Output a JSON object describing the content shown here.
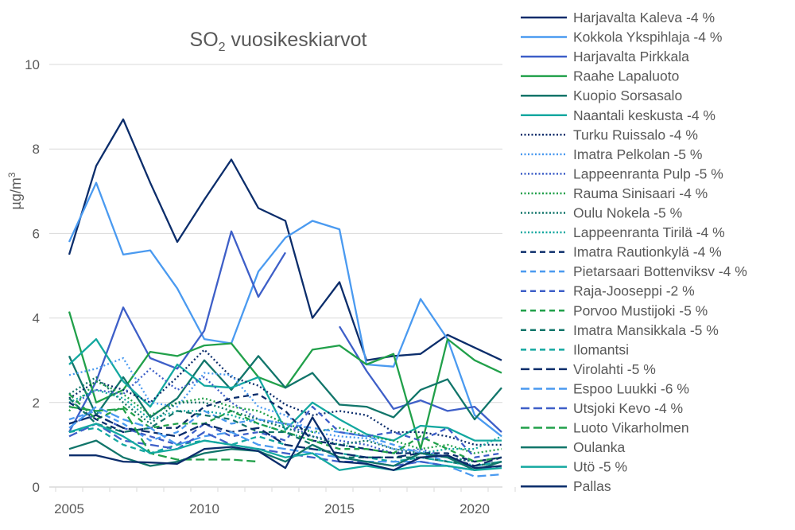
{
  "chart_data": {
    "type": "line",
    "title": "SO2 vuosikeskiarvot",
    "title_main": "SO",
    "title_sub": "2",
    "title_rest": " vuosikeskiarvot",
    "ylabel": "µg/m3",
    "ylabel_main": "µg/m",
    "ylabel_sup": "3",
    "ylim": [
      0,
      10
    ],
    "yticks": [
      0,
      2,
      4,
      6,
      8,
      10
    ],
    "xlim": [
      2005,
      2021
    ],
    "xticks": [
      2005,
      2010,
      2015,
      2020
    ],
    "grid": "horizontal",
    "legend": "right",
    "x": [
      2005,
      2006,
      2007,
      2008,
      2009,
      2010,
      2011,
      2012,
      2013,
      2014,
      2015,
      2016,
      2017,
      2018,
      2019,
      2020,
      2021
    ],
    "series": [
      {
        "name": "Harjavalta Kaleva -4 %",
        "color": "#0b2d6b",
        "style": "solid",
        "values": [
          5.5,
          7.6,
          8.7,
          7.2,
          5.8,
          6.8,
          7.75,
          6.6,
          6.3,
          4.0,
          4.85,
          3.0,
          3.1,
          3.15,
          3.6,
          3.3,
          3.0
        ]
      },
      {
        "name": "Kokkola Ykspihlaja -4 %",
        "color": "#4a9af0",
        "style": "solid",
        "values": [
          5.8,
          7.2,
          5.5,
          5.6,
          4.7,
          3.5,
          3.4,
          5.1,
          5.9,
          6.3,
          6.1,
          2.9,
          2.85,
          4.45,
          3.5,
          1.7,
          1.2
        ]
      },
      {
        "name": "Harjavalta Pirkkala",
        "color": "#3e5fc8",
        "style": "solid",
        "values": [
          1.3,
          2.5,
          4.25,
          3.05,
          2.8,
          3.7,
          6.05,
          4.5,
          5.55,
          null,
          3.8,
          2.75,
          1.85,
          2.05,
          1.8,
          1.9,
          1.3
        ]
      },
      {
        "name": "Raahe Lapaluoto",
        "color": "#21a04a",
        "style": "solid",
        "values": [
          4.15,
          2.0,
          2.3,
          3.2,
          3.1,
          3.35,
          3.4,
          2.6,
          2.35,
          3.25,
          3.35,
          2.9,
          3.15,
          0.9,
          3.5,
          3.0,
          2.7
        ]
      },
      {
        "name": "Kuopio Sorsasalo",
        "color": "#11756a",
        "style": "solid",
        "values": [
          3.1,
          1.7,
          2.6,
          1.65,
          2.1,
          3.0,
          2.3,
          3.1,
          2.35,
          2.7,
          1.95,
          1.9,
          1.65,
          2.3,
          2.55,
          1.6,
          2.35
        ]
      },
      {
        "name": "Naantali keskusta -4 %",
        "color": "#14a8a0",
        "style": "solid",
        "values": [
          2.9,
          3.5,
          2.5,
          1.9,
          2.9,
          2.4,
          2.35,
          2.6,
          1.35,
          2.0,
          1.6,
          1.25,
          1.1,
          1.45,
          1.4,
          1.1,
          1.1
        ]
      },
      {
        "name": "Turku Ruissalo -4 %",
        "color": "#0b2d6b",
        "style": "dot",
        "values": [
          2.1,
          2.5,
          2.3,
          2.0,
          2.6,
          3.25,
          2.6,
          2.4,
          1.95,
          1.7,
          1.8,
          1.7,
          1.3,
          1.3,
          1.2,
          1.0,
          1.0
        ]
      },
      {
        "name": "Imatra Pelkolan -5 %",
        "color": "#4a9af0",
        "style": "dot",
        "values": [
          2.65,
          2.8,
          3.05,
          2.0,
          1.9,
          2.7,
          2.65,
          1.9,
          1.7,
          1.3,
          1.2,
          1.15,
          0.9,
          0.85,
          0.7,
          0.5,
          0.6
        ]
      },
      {
        "name": "Lappeenranta Pulp -5 %",
        "color": "#3e5fc8",
        "style": "dot",
        "values": [
          1.9,
          2.3,
          2.2,
          2.8,
          2.3,
          2.6,
          2.0,
          1.6,
          1.5,
          1.2,
          1.1,
          1.0,
          0.8,
          0.9,
          0.7,
          0.6,
          0.7
        ]
      },
      {
        "name": "Rauma Sinisaari -4 %",
        "color": "#21a04a",
        "style": "dot",
        "values": [
          1.8,
          2.5,
          2.2,
          1.7,
          2.0,
          2.1,
          1.9,
          1.8,
          1.5,
          1.3,
          1.4,
          1.2,
          1.1,
          0.9,
          1.0,
          0.8,
          0.9
        ]
      },
      {
        "name": "Oulu Nokela -5 %",
        "color": "#11756a",
        "style": "dot",
        "values": [
          2.2,
          2.6,
          2.0,
          1.5,
          2.0,
          2.0,
          1.8,
          1.6,
          1.4,
          1.2,
          1.0,
          1.1,
          0.9,
          0.8,
          0.7,
          0.6,
          0.7
        ]
      },
      {
        "name": "Lappeenranta Tirilä -4 %",
        "color": "#14a8a0",
        "style": "dot",
        "values": [
          2.0,
          2.3,
          2.1,
          1.6,
          1.8,
          1.8,
          1.7,
          1.5,
          1.3,
          1.1,
          1.0,
          0.9,
          0.8,
          0.8,
          0.9,
          0.9,
          1.2
        ]
      },
      {
        "name": "Imatra Rautionkylä -4 %",
        "color": "#0b2d6b",
        "style": "dash",
        "values": [
          2.0,
          1.6,
          1.3,
          1.4,
          1.4,
          1.9,
          2.1,
          2.2,
          1.8,
          1.1,
          1.0,
          0.9,
          0.8,
          0.8,
          0.8,
          0.6,
          0.7
        ]
      },
      {
        "name": "Pietarsaari Bottenviksv -4 %",
        "color": "#4a9af0",
        "style": "dash",
        "values": [
          1.6,
          1.8,
          1.5,
          1.1,
          1.3,
          1.8,
          1.5,
          1.6,
          1.5,
          1.4,
          1.3,
          1.2,
          1.0,
          0.8,
          0.6,
          0.5,
          0.6
        ]
      },
      {
        "name": "Raja-Jooseppi -2 %",
        "color": "#3e5fc8",
        "style": "dash",
        "values": [
          1.5,
          1.7,
          1.4,
          1.2,
          1.0,
          1.5,
          1.2,
          1.3,
          1.1,
          1.9,
          1.3,
          1.2,
          1.3,
          1.1,
          1.4,
          0.7,
          0.8
        ]
      },
      {
        "name": "Porvoo Mustijoki -5 %",
        "color": "#21a04a",
        "style": "dash",
        "values": [
          2.2,
          1.6,
          1.9,
          1.4,
          1.5,
          1.5,
          1.8,
          1.5,
          1.3,
          1.1,
          0.9,
          0.9,
          0.8,
          1.2,
          0.9,
          0.6,
          0.7
        ]
      },
      {
        "name": "Imatra Mansikkala -5 %",
        "color": "#11756a",
        "style": "dash",
        "values": [
          2.1,
          1.5,
          1.3,
          1.4,
          1.8,
          1.7,
          1.6,
          1.3,
          1.3,
          1.0,
          0.7,
          0.7,
          0.7,
          0.7,
          0.6,
          0.5,
          0.6
        ]
      },
      {
        "name": "Ilomantsi",
        "color": "#14a8a0",
        "style": "dash",
        "values": [
          1.3,
          1.4,
          1.0,
          0.8,
          1.0,
          1.1,
          1.0,
          1.2,
          1.0,
          0.9,
          0.8,
          0.7,
          0.6,
          0.7,
          0.6,
          0.5,
          0.6
        ]
      },
      {
        "name": "Virolahti -5 %",
        "color": "#0b2d6b",
        "style": "longdash",
        "values": [
          1.5,
          1.7,
          1.4,
          1.3,
          1.2,
          1.5,
          1.3,
          1.4,
          1.0,
          0.9,
          0.8,
          0.7,
          0.7,
          0.8,
          0.7,
          0.5,
          0.7
        ]
      },
      {
        "name": "Espoo Luukki -6 %",
        "color": "#4a9af0",
        "style": "longdash",
        "values": [
          1.4,
          1.9,
          1.6,
          1.4,
          1.0,
          1.2,
          1.3,
          1.0,
          0.9,
          0.8,
          0.7,
          0.6,
          0.6,
          0.6,
          0.5,
          0.25,
          0.3
        ]
      },
      {
        "name": "Utsjoki Kevo -4 %",
        "color": "#3e5fc8",
        "style": "longdash",
        "values": [
          1.2,
          1.5,
          1.1,
          1.0,
          0.9,
          1.3,
          1.0,
          0.9,
          0.8,
          0.7,
          0.6,
          0.6,
          0.5,
          0.6,
          0.5,
          0.4,
          0.5
        ]
      },
      {
        "name": "Luoto Vikarholmen",
        "color": "#21a04a",
        "style": "longdash",
        "values": [
          1.9,
          1.8,
          1.85,
          0.8,
          0.65,
          0.65,
          0.65,
          0.6,
          null,
          null,
          null,
          null,
          null,
          null,
          null,
          null,
          null
        ]
      },
      {
        "name": "Oulanka",
        "color": "#11756a",
        "style": "solid",
        "values": [
          0.9,
          1.1,
          0.7,
          0.5,
          0.6,
          0.8,
          0.9,
          0.85,
          0.6,
          1.0,
          0.7,
          0.6,
          0.5,
          0.8,
          0.7,
          0.4,
          0.6
        ]
      },
      {
        "name": "Utö -5 %",
        "color": "#14a8a0",
        "style": "solid",
        "values": [
          1.3,
          1.5,
          1.2,
          0.8,
          0.9,
          1.1,
          1.0,
          0.9,
          0.7,
          0.8,
          0.4,
          0.5,
          0.4,
          0.5,
          0.5,
          0.4,
          0.45
        ]
      },
      {
        "name": "Pallas",
        "color": "#0b2d6b",
        "style": "solid",
        "values": [
          0.75,
          0.75,
          0.6,
          0.58,
          0.55,
          0.9,
          0.95,
          0.85,
          0.45,
          1.65,
          0.6,
          0.55,
          0.4,
          0.7,
          0.75,
          0.45,
          0.5
        ]
      }
    ]
  }
}
